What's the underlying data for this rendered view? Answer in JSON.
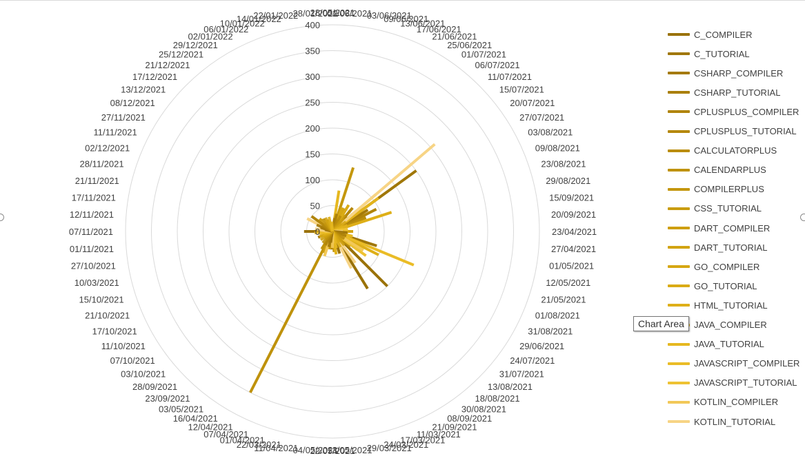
{
  "tooltip": "Chart Area",
  "colors": {
    "grid": "#d9d9d9",
    "label": "#404040"
  },
  "chart_data": {
    "type": "radar",
    "rmax": 400,
    "ticks": [
      0,
      50,
      100,
      150,
      200,
      250,
      300,
      350,
      400
    ],
    "categories": [
      "28/05/2021",
      "01/06/2021",
      "03/06/2021",
      "09/06/2021",
      "13/06/2021",
      "17/06/2021",
      "21/06/2021",
      "25/06/2021",
      "01/07/2021",
      "06/07/2021",
      "11/07/2021",
      "15/07/2021",
      "20/07/2021",
      "27/07/2021",
      "03/08/2021",
      "09/08/2021",
      "23/08/2021",
      "29/08/2021",
      "15/09/2021",
      "20/09/2021",
      "23/04/2021",
      "27/04/2021",
      "01/05/2021",
      "12/05/2021",
      "21/05/2021",
      "01/08/2021",
      "31/08/2021",
      "29/06/2021",
      "24/07/2021",
      "31/07/2021",
      "13/08/2021",
      "18/08/2021",
      "30/08/2021",
      "08/09/2021",
      "21/09/2021",
      "11/03/2021",
      "17/03/2021",
      "24/03/2021",
      "29/03/2021",
      "13/05/2021",
      "22/05/2021",
      "04/05/2021",
      "11/04/2021",
      "22/03/2021",
      "01/04/2021",
      "07/04/2021",
      "12/04/2021",
      "16/04/2021",
      "03/05/2021",
      "23/09/2021",
      "28/09/2021",
      "03/10/2021",
      "07/10/2021",
      "11/10/2021",
      "17/10/2021",
      "21/10/2021",
      "15/10/2021",
      "10/03/2021",
      "27/10/2021",
      "01/11/2021",
      "07/11/2021",
      "12/11/2021",
      "17/11/2021",
      "21/11/2021",
      "28/11/2021",
      "02/12/2021",
      "11/11/2021",
      "27/11/2021",
      "08/12/2021",
      "13/12/2021",
      "17/12/2021",
      "21/12/2021",
      "25/12/2021",
      "29/12/2021",
      "02/01/2022",
      "06/01/2022",
      "10/01/2022",
      "14/01/2022",
      "22/01/2022",
      "28/01/2022"
    ],
    "series": [
      {
        "name": "C_COMPILER",
        "color": "#9a7208",
        "spikes": [
          [
            10,
            40
          ],
          [
            30,
            150
          ],
          [
            33,
            130
          ],
          [
            36,
            45
          ],
          [
            60,
            55
          ],
          [
            14,
            65
          ]
        ]
      },
      {
        "name": "C_TUTORIAL",
        "color": "#a07708",
        "spikes": [
          [
            12,
            200
          ],
          [
            24,
            90
          ],
          [
            70,
            20
          ]
        ]
      },
      {
        "name": "CSHARP_COMPILER",
        "color": "#a57a08",
        "spikes": [
          [
            13,
            80
          ],
          [
            28,
            60
          ],
          [
            55,
            30
          ]
        ]
      },
      {
        "name": "CSHARP_TUTORIAL",
        "color": "#aa7f09",
        "spikes": [
          [
            11,
            60
          ],
          [
            41,
            35
          ],
          [
            65,
            25
          ]
        ]
      },
      {
        "name": "CPLUSPLUS_COMPILER",
        "color": "#b0840a",
        "spikes": [
          [
            14,
            95
          ],
          [
            25,
            55
          ],
          [
            68,
            50
          ]
        ]
      },
      {
        "name": "CPLUSPLUS_TUTORIAL",
        "color": "#b5880a",
        "spikes": [
          [
            9,
            60
          ],
          [
            27,
            45
          ],
          [
            72,
            30
          ]
        ]
      },
      {
        "name": "CALCULATORPLUS",
        "color": "#ba8d0b",
        "spikes": [
          [
            15,
            70
          ],
          [
            29,
            45
          ],
          [
            58,
            20
          ]
        ]
      },
      {
        "name": "CALENDARPLUS",
        "color": "#bf920c",
        "spikes": [
          [
            46,
            350
          ],
          [
            47,
            40
          ],
          [
            12,
            50
          ]
        ]
      },
      {
        "name": "COMPILERPLUS",
        "color": "#c4970d",
        "spikes": [
          [
            4,
            130
          ],
          [
            39,
            40
          ],
          [
            62,
            20
          ]
        ]
      },
      {
        "name": "CSS_TUTORIAL",
        "color": "#c99c0e",
        "spikes": [
          [
            8,
            40
          ],
          [
            42,
            35
          ],
          [
            75,
            25
          ]
        ]
      },
      {
        "name": "DART_COMPILER",
        "color": "#ce9f10",
        "spikes": [
          [
            3,
            30
          ],
          [
            45,
            45
          ],
          [
            70,
            35
          ]
        ]
      },
      {
        "name": "DART_TUTORIAL",
        "color": "#d2a412",
        "spikes": [
          [
            6,
            50
          ],
          [
            20,
            40
          ],
          [
            40,
            30
          ]
        ]
      },
      {
        "name": "GO_COMPILER",
        "color": "#d6a713",
        "spikes": [
          [
            5,
            50
          ],
          [
            21,
            25
          ],
          [
            50,
            20
          ]
        ]
      },
      {
        "name": "GO_TUTORIAL",
        "color": "#daab15",
        "spikes": [
          [
            7,
            60
          ],
          [
            22,
            30
          ],
          [
            64,
            25
          ]
        ]
      },
      {
        "name": "HTML_TUTORIAL",
        "color": "#deaf18",
        "spikes": [
          [
            16,
            120
          ],
          [
            26,
            100
          ],
          [
            67,
            30
          ]
        ]
      },
      {
        "name": "JAVA_COMPILER",
        "color": "#e2b31b",
        "spikes": [
          [
            12,
            110
          ],
          [
            38,
            45
          ],
          [
            73,
            25
          ]
        ]
      },
      {
        "name": "JAVA_TUTORIAL",
        "color": "#e6b820",
        "spikes": [
          [
            2,
            80
          ],
          [
            23,
            40
          ],
          [
            60,
            25
          ]
        ]
      },
      {
        "name": "JAVASCRIPT_COMPILER",
        "color": "#eabc26",
        "spikes": [
          [
            25,
            170
          ],
          [
            19,
            30
          ],
          [
            54,
            20
          ]
        ]
      },
      {
        "name": "JAVASCRIPT_TUTORIAL",
        "color": "#eec233",
        "spikes": [
          [
            11,
            110
          ],
          [
            28,
            80
          ],
          [
            66,
            40
          ]
        ]
      },
      {
        "name": "KOTLIN_COMPILER",
        "color": "#f2c858",
        "spikes": [
          [
            27,
            70
          ],
          [
            44,
            50
          ],
          [
            63,
            25
          ]
        ]
      },
      {
        "name": "KOTLIN_TUTORIAL",
        "color": "#f7d485",
        "spikes": [
          [
            11,
            260
          ],
          [
            32,
            75
          ],
          [
            66,
            55
          ],
          [
            34,
            80
          ],
          [
            71,
            30
          ]
        ]
      }
    ]
  }
}
